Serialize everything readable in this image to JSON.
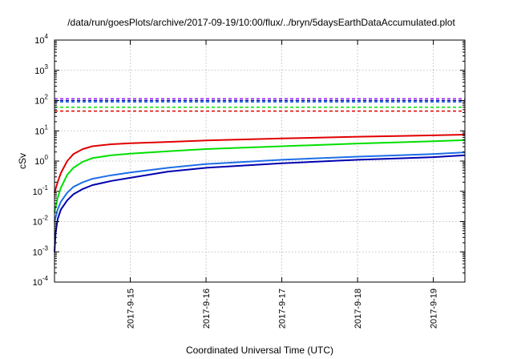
{
  "chart_data": {
    "type": "line",
    "title": "/data/run/goesPlots/archive/2017-09-19/10:00/flux/../bryn/5daysEarthDataAccumulated.plot",
    "xlabel": "Coordinated Universal Time (UTC)",
    "ylabel": "cSv",
    "y_scale": "log",
    "ylim": [
      0.0001,
      10000
    ],
    "xlim": [
      "2017-09-14 00:00",
      "2017-09-19 10:00"
    ],
    "grid": true,
    "x_ticks": [
      "2017-9-15",
      "2017-9-16",
      "2017-9-17",
      "2017-9-18",
      "2017-9-19"
    ],
    "y_ticks": [
      {
        "base": "10",
        "exp": "-4"
      },
      {
        "base": "10",
        "exp": "-3"
      },
      {
        "base": "10",
        "exp": "-2"
      },
      {
        "base": "10",
        "exp": "-1"
      },
      {
        "base": "10",
        "exp": "0"
      },
      {
        "base": "10",
        "exp": "1"
      },
      {
        "base": "10",
        "exp": "2"
      },
      {
        "base": "10",
        "exp": "3"
      },
      {
        "base": "10",
        "exp": "4"
      }
    ],
    "series": [
      {
        "color": "#e00000",
        "style": "solid",
        "x": [
          "2017-09-14 00:00",
          "2017-09-14 01:00",
          "2017-09-14 02:00",
          "2017-09-14 04:00",
          "2017-09-14 06:00",
          "2017-09-14 09:00",
          "2017-09-14 12:00",
          "2017-09-14 18:00",
          "2017-09-15 00:00",
          "2017-09-15 12:00",
          "2017-09-16 00:00",
          "2017-09-17 00:00",
          "2017-09-18 00:00",
          "2017-09-19 00:00",
          "2017-09-19 10:00"
        ],
        "y": [
          0.09,
          0.2,
          0.4,
          1.0,
          1.7,
          2.5,
          3.1,
          3.6,
          3.9,
          4.3,
          4.8,
          5.6,
          6.4,
          7.1,
          7.5
        ]
      },
      {
        "color": "#00e000",
        "style": "solid",
        "x": [
          "2017-09-14 00:00",
          "2017-09-14 01:00",
          "2017-09-14 02:00",
          "2017-09-14 04:00",
          "2017-09-14 06:00",
          "2017-09-14 09:00",
          "2017-09-14 12:00",
          "2017-09-14 18:00",
          "2017-09-15 00:00",
          "2017-09-15 12:00",
          "2017-09-16 00:00",
          "2017-09-17 00:00",
          "2017-09-18 00:00",
          "2017-09-19 00:00",
          "2017-09-19 10:00"
        ],
        "y": [
          0.02,
          0.06,
          0.13,
          0.35,
          0.6,
          0.95,
          1.25,
          1.55,
          1.75,
          2.1,
          2.5,
          3.1,
          3.8,
          4.5,
          4.9
        ]
      },
      {
        "color": "#1e6ee8",
        "style": "solid",
        "x": [
          "2017-09-14 00:00",
          "2017-09-14 01:00",
          "2017-09-14 02:00",
          "2017-09-14 04:00",
          "2017-09-14 06:00",
          "2017-09-14 09:00",
          "2017-09-14 12:00",
          "2017-09-14 18:00",
          "2017-09-15 00:00",
          "2017-09-15 12:00",
          "2017-09-16 00:00",
          "2017-09-17 00:00",
          "2017-09-18 00:00",
          "2017-09-19 00:00",
          "2017-09-19 10:00"
        ],
        "y": [
          0.01,
          0.025,
          0.045,
          0.09,
          0.14,
          0.2,
          0.26,
          0.34,
          0.42,
          0.6,
          0.8,
          1.1,
          1.4,
          1.7,
          1.95
        ]
      },
      {
        "color": "#0000b0",
        "style": "solid",
        "x": [
          "2017-09-14 00:00",
          "2017-09-14 00:20",
          "2017-09-14 01:00",
          "2017-09-14 02:00",
          "2017-09-14 04:00",
          "2017-09-14 06:00",
          "2017-09-14 09:00",
          "2017-09-14 12:00",
          "2017-09-14 18:00",
          "2017-09-15 00:00",
          "2017-09-15 12:00",
          "2017-09-16 00:00",
          "2017-09-17 00:00",
          "2017-09-18 00:00",
          "2017-09-19 00:00",
          "2017-09-19 10:00"
        ],
        "y": [
          0.001,
          0.004,
          0.012,
          0.025,
          0.05,
          0.08,
          0.12,
          0.16,
          0.22,
          0.28,
          0.45,
          0.6,
          0.85,
          1.1,
          1.35,
          1.55
        ]
      },
      {
        "color": "#e00000",
        "style": "dashed",
        "x": [
          "2017-09-14 00:00",
          "2017-09-19 10:00"
        ],
        "y": [
          45,
          45
        ]
      },
      {
        "color": "#00e000",
        "style": "dashed",
        "x": [
          "2017-09-14 00:00",
          "2017-09-19 10:00"
        ],
        "y": [
          60,
          60
        ]
      },
      {
        "color": "#1e6ee8",
        "style": "dashed",
        "x": [
          "2017-09-14 00:00",
          "2017-09-19 10:00"
        ],
        "y": [
          90,
          90
        ]
      },
      {
        "color": "#0000b0",
        "style": "dashed",
        "x": [
          "2017-09-14 00:00",
          "2017-09-19 10:00"
        ],
        "y": [
          100,
          100
        ]
      },
      {
        "color": "#a020f0",
        "style": "dashed",
        "x": [
          "2017-09-14 00:00",
          "2017-09-19 10:00"
        ],
        "y": [
          115,
          115
        ]
      }
    ]
  }
}
